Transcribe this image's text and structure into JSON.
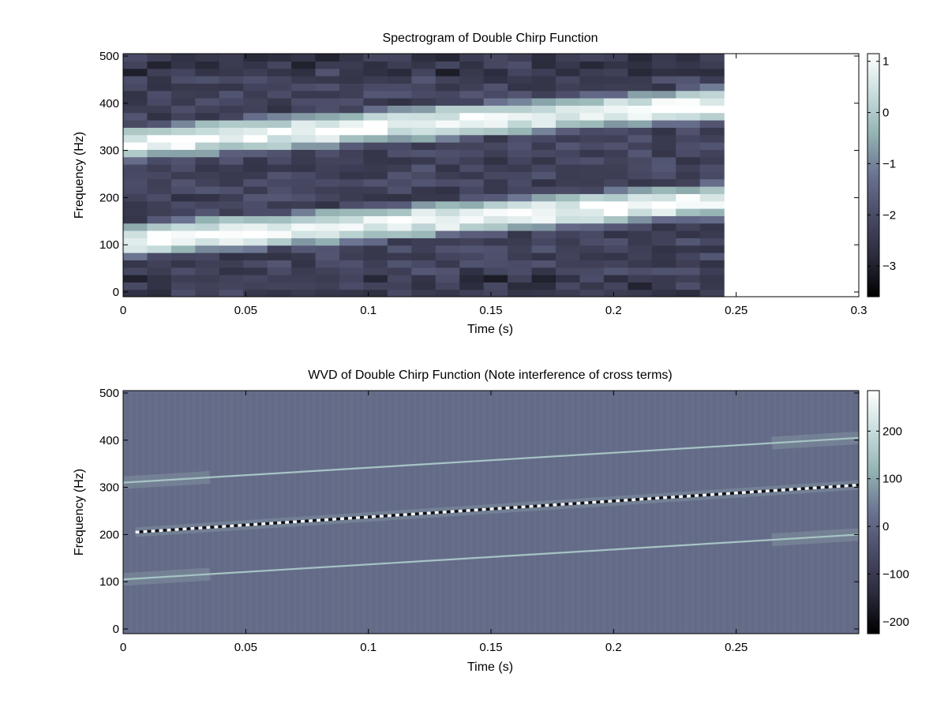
{
  "figure": {
    "background": "#ffffff"
  },
  "colormap": [
    "#000000",
    "#2a2b3b",
    "#4a4b66",
    "#6a7290",
    "#93b2b2",
    "#c8dcdc",
    "#ffffff"
  ],
  "chart_data": [
    {
      "type": "heatmap",
      "title": "Spectrogram of Double Chirp Function",
      "xlabel": "Time (s)",
      "ylabel": "Frequency (Hz)",
      "xlim": [
        0,
        0.3
      ],
      "ylim": [
        -10,
        505
      ],
      "xticks": [
        0,
        0.05,
        0.1,
        0.15,
        0.2,
        0.25,
        0.3
      ],
      "xtick_labels": [
        "0",
        "0.05",
        "0.1",
        "0.15",
        "0.2",
        "0.25",
        "0.3"
      ],
      "yticks": [
        0,
        100,
        200,
        300,
        400,
        500
      ],
      "ytick_labels": [
        "0",
        "100",
        "200",
        "300",
        "400",
        "500"
      ],
      "data_extent": {
        "t_start": 0,
        "t_end": 0.245,
        "time_bins": 25,
        "f_start": -10,
        "f_end": 505,
        "freq_bins": 33
      },
      "ridges": [
        {
          "name": "",
          "f_start": 110,
          "f_end": 195
        },
        {
          "name": "",
          "f_start": 315,
          "f_end": 400
        }
      ],
      "colorbar": {
        "range": [
          -3.6,
          1.15
        ],
        "ticks": [
          1,
          0,
          -1,
          -2,
          -3
        ],
        "tick_labels": [
          "1",
          "0",
          "−1",
          "−2",
          "−3"
        ]
      }
    },
    {
      "type": "heatmap",
      "title": "WVD of Double Chirp Function (Note interference of cross terms)",
      "xlabel": "Time (s)",
      "ylabel": "Frequency (Hz)",
      "xlim": [
        0,
        0.3
      ],
      "ylim": [
        -10,
        505
      ],
      "xticks": [
        0,
        0.05,
        0.1,
        0.15,
        0.2,
        0.25
      ],
      "xtick_labels": [
        "0",
        "0.05",
        "0.1",
        "0.15",
        "0.2",
        "0.25"
      ],
      "yticks": [
        0,
        100,
        200,
        300,
        400,
        500
      ],
      "ytick_labels": [
        "0",
        "100",
        "200",
        "300",
        "400",
        "500"
      ],
      "auto_terms": [
        {
          "name": "",
          "t": [
            0,
            0.3
          ],
          "f": [
            105,
            200
          ]
        },
        {
          "name": "",
          "t": [
            0,
            0.3
          ],
          "f": [
            310,
            405
          ]
        }
      ],
      "cross_term": {
        "name": "",
        "t": [
          0.005,
          0.3
        ],
        "f": [
          205,
          305
        ]
      },
      "background_value": 0,
      "colorbar": {
        "range": [
          -225,
          285
        ],
        "ticks": [
          200,
          100,
          0,
          -100,
          -200
        ],
        "tick_labels": [
          "200",
          "100",
          "0",
          "−100",
          "−200"
        ]
      }
    }
  ]
}
